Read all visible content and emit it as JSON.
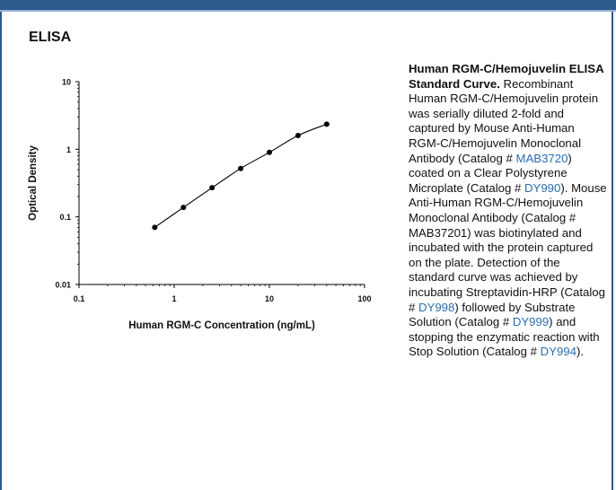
{
  "header": {
    "section_title": "ELISA"
  },
  "chart_data": {
    "type": "scatter",
    "title": "",
    "xlabel": "Human RGM-C Concentration (ng/mL)",
    "ylabel": "Optical Density",
    "xscale": "log",
    "yscale": "log",
    "xlim": [
      0.1,
      100
    ],
    "ylim": [
      0.01,
      10
    ],
    "x_ticks": [
      {
        "value": 0.1,
        "label": "0.1"
      },
      {
        "value": 1,
        "label": "1"
      },
      {
        "value": 10,
        "label": "10"
      },
      {
        "value": 100,
        "label": "100"
      }
    ],
    "y_ticks": [
      {
        "value": 0.01,
        "label": "0.01"
      },
      {
        "value": 0.1,
        "label": "0.1"
      },
      {
        "value": 1,
        "label": "1"
      },
      {
        "value": 10,
        "label": "10"
      }
    ],
    "grid": false,
    "series": [
      {
        "x": [
          0.625,
          1.25,
          2.5,
          5,
          10,
          20,
          40
        ],
        "y": [
          0.07,
          0.138,
          0.27,
          0.52,
          0.9,
          1.6,
          2.35
        ],
        "fit_curve": true
      }
    ],
    "colors": {
      "points": "#000000",
      "curve": "#000000"
    }
  },
  "caption": {
    "title": "Human RGM-C/Hemojuvelin ELISA Standard Curve.",
    "body": [
      {
        "text": " Recombinant Human RGM-C/Hemojuvelin protein was serially diluted 2-fold and captured by Mouse Anti-Human RGM-C/Hemojuvelin Monoclonal Antibody (Catalog # "
      },
      {
        "text": "MAB3720",
        "link": true
      },
      {
        "text": ") coated on a Clear Polystyrene Microplate (Catalog # "
      },
      {
        "text": "DY990",
        "link": true
      },
      {
        "text": "). Mouse Anti-Human RGM-C/Hemojuvelin Monoclonal Antibody (Catalog # MAB37201) was biotinylated and incubated with the protein captured on the plate. Detection of the standard curve was achieved by incubating Streptavidin-HRP (Catalog # "
      },
      {
        "text": "DY998",
        "link": true
      },
      {
        "text": ") followed by Substrate Solution (Catalog # "
      },
      {
        "text": "DY999",
        "link": true
      },
      {
        "text": ") and stopping the enzymatic reaction with Stop Solution (Catalog # "
      },
      {
        "text": "DY994",
        "link": true
      },
      {
        "text": ")."
      }
    ],
    "link_color": "#2a6db3"
  }
}
